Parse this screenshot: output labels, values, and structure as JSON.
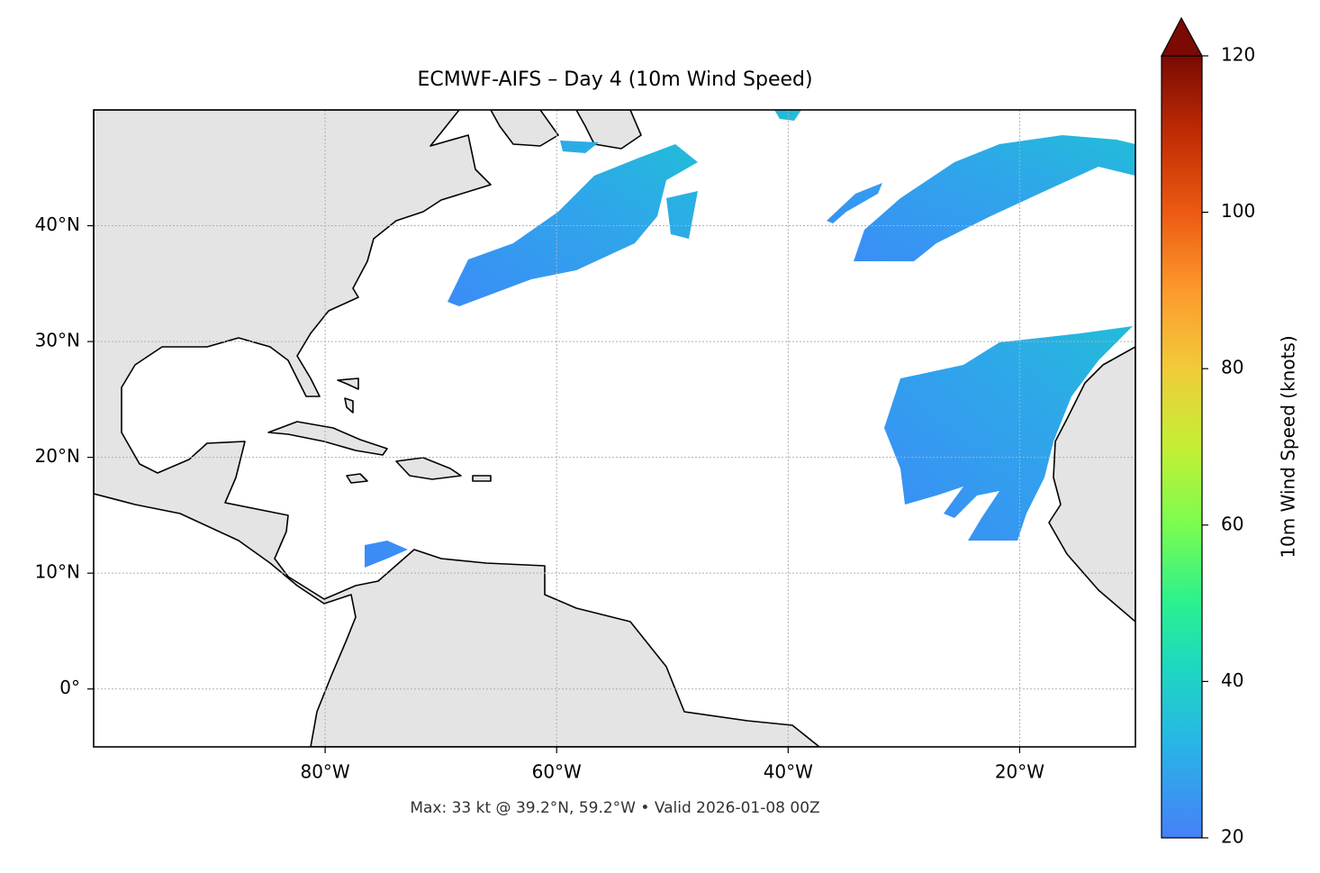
{
  "chart_data": {
    "type": "map",
    "title": "ECMWF-AIFS – Day 4 (10m Wind Speed)",
    "footer": "Max: 33 kt @ 39.2°N, 59.2°W • Valid 2026-01-08 00Z",
    "xlim": [
      -100,
      -10
    ],
    "ylim": [
      -5,
      50
    ],
    "xticks": [
      {
        "value": -80,
        "label": "80°W"
      },
      {
        "value": -60,
        "label": "60°W"
      },
      {
        "value": -40,
        "label": "40°W"
      },
      {
        "value": -20,
        "label": "20°W"
      }
    ],
    "yticks": [
      {
        "value": 0,
        "label": "0°"
      },
      {
        "value": 10,
        "label": "10°N"
      },
      {
        "value": 20,
        "label": "20°N"
      },
      {
        "value": 30,
        "label": "30°N"
      },
      {
        "value": 40,
        "label": "40°N"
      }
    ],
    "grid": true,
    "colorbar": {
      "label": "10m Wind Speed (knots)",
      "lim": [
        20,
        120
      ],
      "ticks": [
        20,
        40,
        60,
        80,
        100,
        120
      ]
    }
  }
}
